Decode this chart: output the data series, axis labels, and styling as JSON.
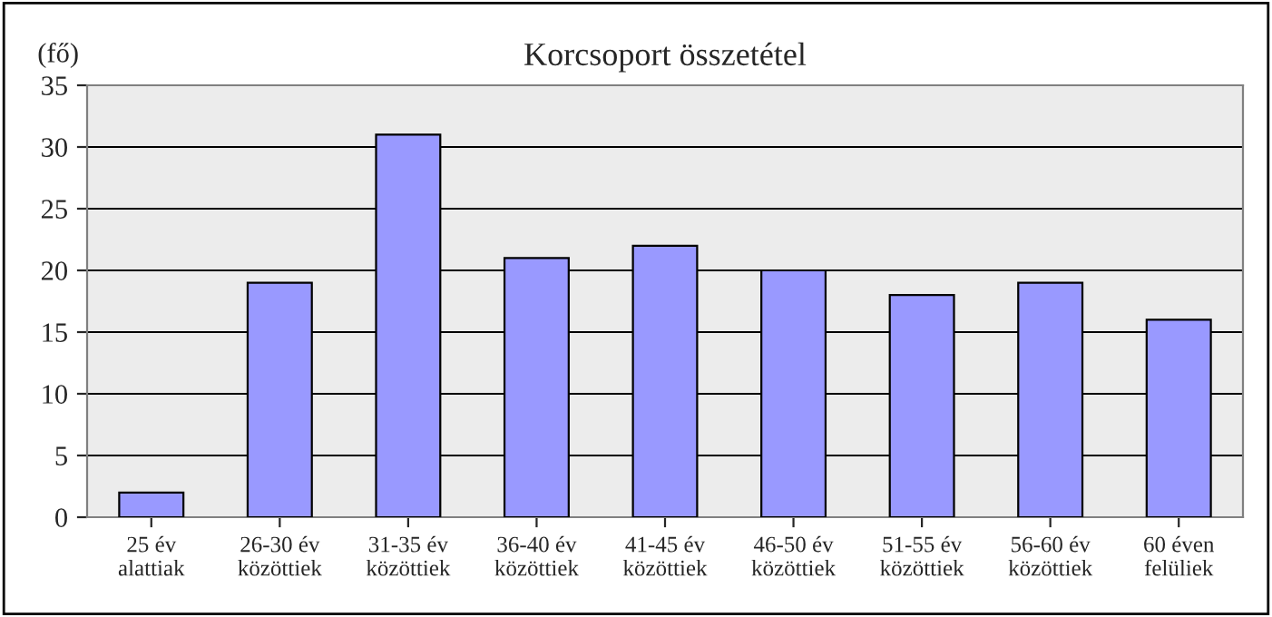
{
  "chart_data": {
    "type": "bar",
    "title": "Korcsoport összetétel",
    "ylabel": "(fő)",
    "categories": [
      "25 év\nalattiak",
      "26-30 év\nközöttiek",
      "31-35 év\nközöttiek",
      "36-40 év\nközöttiek",
      "41-45 év\nközöttiek",
      "46-50 év\nközöttiek",
      "51-55 év\nközöttiek",
      "56-60 év\nközöttiek",
      "60 éven\nfelüliek"
    ],
    "values": [
      2,
      19,
      31,
      21,
      22,
      20,
      18,
      19,
      16
    ],
    "color": "#9999ff",
    "ylim": [
      0,
      35
    ],
    "yticks": [
      0,
      5,
      10,
      15,
      20,
      25,
      30,
      35
    ],
    "grid": "y",
    "legend": false
  }
}
